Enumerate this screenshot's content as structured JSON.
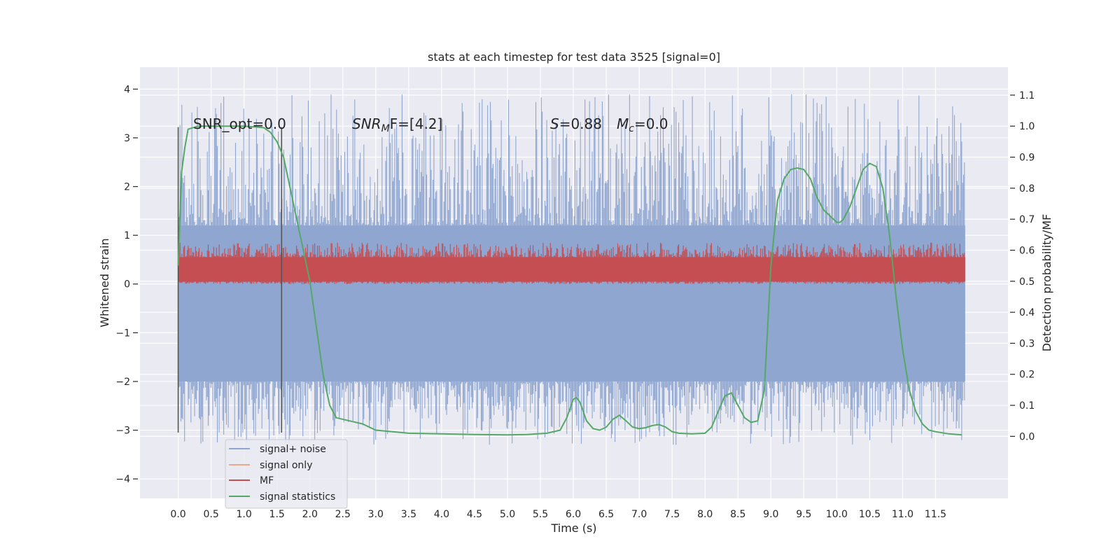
{
  "chart_data": {
    "type": "line",
    "title": "stats at each timestep for test data 3525 [signal=0]",
    "xlabel": "Time (s)",
    "ylabel": "Whitened strain",
    "ylabel_right": "Detection probability/MF",
    "xlim": [
      -0.58,
      12.6
    ],
    "ylim": [
      -4.4,
      4.45
    ],
    "ylim_right": [
      -0.2,
      1.19
    ],
    "x_ticks": [
      "0.0",
      "0.5",
      "1.0",
      "1.5",
      "2.0",
      "2.5",
      "3.0",
      "3.5",
      "4.0",
      "4.5",
      "5.0",
      "5.5",
      "6.0",
      "6.5",
      "7.0",
      "7.5",
      "8.0",
      "8.5",
      "9.0",
      "9.5",
      "10.0",
      "10.5",
      "11.0",
      "11.5"
    ],
    "y_ticks": [
      "4",
      "3",
      "2",
      "1",
      "0",
      "−1",
      "−2",
      "−3",
      "−4"
    ],
    "y_ticks_right": [
      "1.1",
      "1.0",
      "0.9",
      "0.8",
      "0.7",
      "0.6",
      "0.5",
      "0.4",
      "0.3",
      "0.2",
      "0.1",
      "0.0"
    ],
    "grid": true,
    "legend_position": "lower-left",
    "annotations": {
      "snr_opt": "SNR_opt=0.0",
      "snr_mf_sym": "SNR",
      "snr_mf_sub": "M",
      "snr_mf_rest": "F=[4.2]",
      "s_sym": "S",
      "s_rest": "=0.88",
      "mc_sym": "M",
      "mc_sub": "c",
      "mc_rest": "=0.0"
    },
    "vertical_lines_x": [
      0.0,
      1.57
    ],
    "noise_band": {
      "core_low": -2.0,
      "core_high": 1.2,
      "peak_low": -3.4,
      "peak_high": 4.1,
      "x_start": 0.0,
      "x_end": 11.95
    },
    "mf_band": {
      "low": 0.0,
      "high": 0.85,
      "x_start": 0.0,
      "x_end": 11.95
    },
    "series": [
      {
        "name": "signal+ noise",
        "color": "#8fa6d0"
      },
      {
        "name": "signal only",
        "color": "#eda78c"
      },
      {
        "name": "MF",
        "color": "#c44e52"
      },
      {
        "name": "signal statistics",
        "color": "#55a868",
        "x": [
          0.0,
          0.05,
          0.1,
          0.15,
          0.3,
          0.6,
          1.0,
          1.3,
          1.4,
          1.5,
          1.6,
          1.7,
          1.8,
          1.9,
          2.0,
          2.1,
          2.2,
          2.3,
          2.4,
          2.6,
          2.8,
          3.0,
          3.5,
          4.0,
          4.5,
          5.0,
          5.3,
          5.6,
          5.8,
          5.9,
          6.0,
          6.05,
          6.1,
          6.2,
          6.3,
          6.4,
          6.5,
          6.6,
          6.7,
          6.8,
          6.9,
          7.0,
          7.1,
          7.2,
          7.3,
          7.4,
          7.5,
          7.6,
          7.8,
          8.0,
          8.1,
          8.2,
          8.3,
          8.4,
          8.5,
          8.6,
          8.7,
          8.8,
          8.9,
          9.0,
          9.1,
          9.2,
          9.3,
          9.4,
          9.5,
          9.6,
          9.7,
          9.8,
          9.9,
          10.0,
          10.05,
          10.1,
          10.2,
          10.3,
          10.4,
          10.5,
          10.6,
          10.7,
          10.8,
          10.9,
          11.0,
          11.1,
          11.2,
          11.3,
          11.4,
          11.5,
          11.7,
          11.9
        ],
        "y": [
          0.55,
          0.85,
          0.93,
          0.99,
          1.0,
          1.0,
          1.0,
          0.995,
          0.98,
          0.95,
          0.9,
          0.8,
          0.7,
          0.6,
          0.5,
          0.35,
          0.2,
          0.1,
          0.06,
          0.05,
          0.04,
          0.02,
          0.01,
          0.008,
          0.006,
          0.005,
          0.006,
          0.01,
          0.02,
          0.06,
          0.12,
          0.125,
          0.11,
          0.05,
          0.025,
          0.02,
          0.03,
          0.055,
          0.068,
          0.05,
          0.03,
          0.025,
          0.028,
          0.035,
          0.038,
          0.03,
          0.015,
          0.01,
          0.008,
          0.01,
          0.03,
          0.08,
          0.13,
          0.14,
          0.1,
          0.06,
          0.045,
          0.05,
          0.15,
          0.55,
          0.76,
          0.83,
          0.86,
          0.865,
          0.86,
          0.83,
          0.77,
          0.73,
          0.71,
          0.69,
          0.69,
          0.7,
          0.74,
          0.8,
          0.86,
          0.88,
          0.87,
          0.8,
          0.65,
          0.45,
          0.28,
          0.15,
          0.08,
          0.04,
          0.02,
          0.015,
          0.008,
          0.005
        ]
      }
    ]
  }
}
